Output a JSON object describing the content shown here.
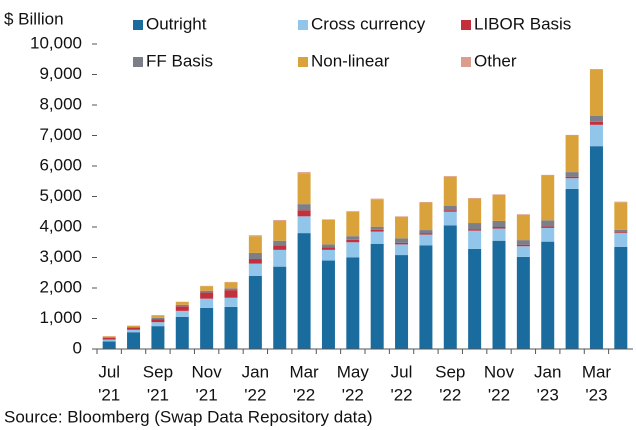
{
  "chart_data": {
    "type": "stacked_bar",
    "y_label": "$ Billion",
    "source": "Source: Bloomberg (Swap Data Repository data)",
    "categories": [
      [
        "Jul",
        "'21"
      ],
      null,
      [
        "Sep",
        "'21"
      ],
      null,
      [
        "Nov",
        "'21"
      ],
      null,
      [
        "Jan",
        "'22"
      ],
      null,
      [
        "Mar",
        "'22"
      ],
      null,
      [
        "May",
        "'22"
      ],
      null,
      [
        "Jul",
        "'22"
      ],
      null,
      [
        "Sep",
        "'22"
      ],
      null,
      [
        "Nov",
        "'22"
      ],
      null,
      [
        "Jan",
        "'23"
      ],
      null,
      [
        "Mar",
        "'23"
      ],
      null
    ],
    "series": [
      {
        "name": "Outright",
        "color": "#1a6c9e",
        "values": [
          250,
          550,
          750,
          1050,
          1350,
          1380,
          2400,
          2700,
          3800,
          2900,
          3000,
          3450,
          3080,
          3400,
          4050,
          3280,
          3550,
          3020,
          3520,
          5250,
          6650,
          3350
        ]
      },
      {
        "name": "Cross currency",
        "color": "#92c5ea",
        "values": [
          60,
          80,
          130,
          200,
          300,
          300,
          400,
          550,
          550,
          350,
          500,
          400,
          350,
          350,
          450,
          600,
          400,
          350,
          450,
          350,
          700,
          450
        ]
      },
      {
        "name": "LIBOR Basis",
        "color": "#c3303c",
        "values": [
          60,
          60,
          100,
          150,
          200,
          250,
          150,
          150,
          200,
          80,
          80,
          60,
          50,
          50,
          50,
          50,
          50,
          50,
          50,
          50,
          100,
          30
        ]
      },
      {
        "name": "FF Basis",
        "color": "#7d7f88",
        "values": [
          20,
          30,
          40,
          50,
          60,
          60,
          200,
          150,
          200,
          100,
          120,
          100,
          150,
          100,
          150,
          200,
          200,
          150,
          200,
          150,
          200,
          80
        ]
      },
      {
        "name": "Non-linear",
        "color": "#d9a23b",
        "values": [
          20,
          40,
          80,
          90,
          150,
          200,
          550,
          650,
          1000,
          800,
          800,
          900,
          700,
          900,
          950,
          800,
          850,
          830,
          1470,
          1200,
          1500,
          900
        ]
      },
      {
        "name": "Other",
        "color": "#dc9c8e",
        "values": [
          10,
          10,
          10,
          10,
          10,
          10,
          30,
          30,
          50,
          20,
          20,
          20,
          20,
          20,
          20,
          20,
          20,
          20,
          20,
          20,
          30,
          20
        ]
      }
    ],
    "ylim": [
      0,
      10000
    ],
    "yticks": [
      0,
      {
        "value": 1000,
        "label": "1,000"
      },
      {
        "value": 2000,
        "label": "2,000"
      },
      {
        "value": 3000,
        "label": "3,000"
      },
      {
        "value": 4000,
        "label": "4,000"
      },
      {
        "value": 5000,
        "label": "5,000"
      },
      {
        "value": 6000,
        "label": "6,000"
      },
      {
        "value": 7000,
        "label": "7,000"
      },
      {
        "value": 8000,
        "label": "8,000"
      },
      {
        "value": 9000,
        "label": "9,000"
      },
      {
        "value": 10000,
        "label": "10,000"
      }
    ],
    "grid": false
  }
}
